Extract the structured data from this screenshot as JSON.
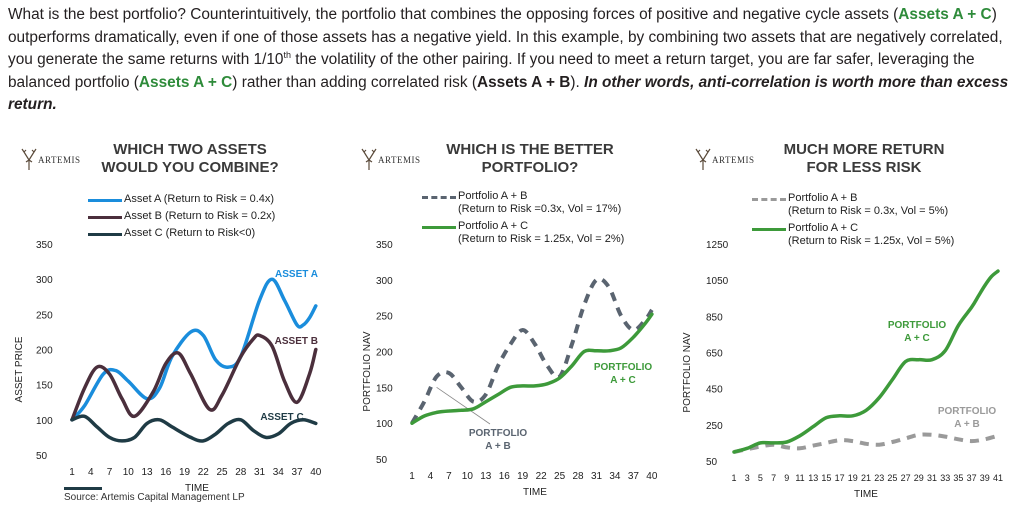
{
  "intro": {
    "p1": "What is the best portfolio? Counterintuitively, the portfolio that combines the opposing forces of positive and negative cycle assets (",
    "p1_bold": "Assets A + C",
    "p2": ") outperforms dramatically, even if one of those assets has a negative yield. In this example, by combining two assets that are negatively correlated, you generate the same returns with 1/10",
    "p2_sup": "th",
    "p3": " the volatility of the other pairing. If you need to meet a return target, you are far safer, leveraging the balanced portfolio (",
    "p3_bold": "Assets A + C",
    "p4": ") rather than adding correlated risk (",
    "p4_bold": "Assets A + B",
    "p5": "). ",
    "p5_italic": "In other words, anti-correlation is worth more than excess return."
  },
  "logo_text": "ARTEMIS",
  "source": "Source: Artemis Capital Management LP",
  "colors": {
    "asset_a": "#1a8ddc",
    "asset_b": "#4b2f3c",
    "asset_c": "#1f3b45",
    "portfolio_ab": "#5a6470",
    "portfolio_ac": "#3d9a3a",
    "title": "#3a3a3a"
  },
  "chart_data": [
    {
      "type": "line",
      "title": "WHICH TWO ASSETS WOULD YOU COMBINE?",
      "title_lines": [
        "WHICH TWO ASSETS",
        "WOULD YOU COMBINE?"
      ],
      "xlabel": "TIME",
      "ylabel": "ASSET PRICE",
      "ylim": [
        50,
        350
      ],
      "yticks": [
        50,
        100,
        150,
        200,
        250,
        300,
        350
      ],
      "xticks": [
        1,
        4,
        7,
        10,
        13,
        16,
        19,
        22,
        25,
        28,
        31,
        34,
        37,
        40
      ],
      "legend": [
        {
          "label": "Asset A (Return to Risk = 0.4x)",
          "style": "solid",
          "color": "#1a8ddc"
        },
        {
          "label": "Asset B (Return to Risk = 0.2x)",
          "style": "solid",
          "color": "#4b2f3c"
        },
        {
          "label": "Asset C (Return to Risk<0)",
          "style": "solid",
          "color": "#1f3b45"
        }
      ],
      "series": [
        {
          "name": "Asset A",
          "label": "ASSET A",
          "color": "#1a8ddc",
          "dashed": false,
          "x": [
            1,
            3,
            6,
            8,
            10,
            13,
            15,
            17,
            20,
            22,
            24,
            26,
            28,
            31,
            33,
            35,
            37,
            38,
            39,
            40
          ],
          "y": [
            100,
            120,
            165,
            170,
            155,
            130,
            145,
            190,
            225,
            220,
            185,
            175,
            190,
            270,
            300,
            270,
            235,
            235,
            245,
            262
          ]
        },
        {
          "name": "Asset B",
          "label": "ASSET B",
          "color": "#4b2f3c",
          "dashed": false,
          "x": [
            1,
            3,
            5,
            7,
            9,
            11,
            14,
            16,
            18,
            20,
            23,
            25,
            28,
            30,
            31,
            33,
            35,
            37,
            39,
            40
          ],
          "y": [
            100,
            145,
            175,
            165,
            130,
            105,
            140,
            180,
            195,
            165,
            115,
            135,
            190,
            215,
            220,
            205,
            155,
            125,
            165,
            200
          ]
        },
        {
          "name": "Asset C",
          "label": "ASSET C",
          "color": "#1f3b45",
          "dashed": false,
          "x": [
            1,
            3,
            5,
            7,
            9,
            11,
            13,
            15,
            17,
            20,
            22,
            24,
            26,
            28,
            30,
            32,
            34,
            36,
            38,
            40
          ],
          "y": [
            100,
            105,
            90,
            75,
            70,
            75,
            95,
            100,
            90,
            75,
            70,
            80,
            95,
            100,
            85,
            75,
            80,
            95,
            100,
            95
          ]
        }
      ]
    },
    {
      "type": "line",
      "title": "WHICH IS THE BETTER PORTFOLIO?",
      "title_lines": [
        "WHICH IS THE BETTER",
        "PORTFOLIO?"
      ],
      "xlabel": "TIME",
      "ylabel": "PORTFOLIO NAV",
      "ylim": [
        50,
        350
      ],
      "yticks": [
        50,
        100,
        150,
        200,
        250,
        300,
        350
      ],
      "xticks": [
        1,
        4,
        7,
        10,
        13,
        16,
        19,
        22,
        25,
        28,
        31,
        34,
        37,
        40
      ],
      "legend": [
        {
          "label": "Portfolio A + B",
          "sub": "(Return to Risk =0.3x, Vol = 17%)",
          "style": "dash",
          "color": "#5a6470"
        },
        {
          "label": "Portfolio A + C",
          "sub": "(Return to Risk = 1.25x, Vol = 2%)",
          "style": "solid",
          "color": "#3d9a3a"
        }
      ],
      "series": [
        {
          "name": "Portfolio A + B",
          "label_lines": [
            "PORTFOLIO",
            "A + B"
          ],
          "color": "#5a6470",
          "dashed": true,
          "x": [
            1,
            3,
            5,
            7,
            9,
            11,
            13,
            15,
            17,
            19,
            21,
            23,
            25,
            27,
            29,
            31,
            33,
            35,
            37,
            39,
            40
          ],
          "y": [
            100,
            130,
            165,
            170,
            150,
            130,
            140,
            180,
            210,
            230,
            210,
            180,
            165,
            210,
            265,
            300,
            290,
            250,
            230,
            245,
            258
          ]
        },
        {
          "name": "Portfolio A + C",
          "label_lines": [
            "PORTFOLIO",
            "A + C"
          ],
          "color": "#3d9a3a",
          "dashed": false,
          "x": [
            1,
            3,
            5,
            7,
            9,
            11,
            13,
            15,
            17,
            19,
            21,
            23,
            25,
            27,
            29,
            31,
            33,
            35,
            37,
            39,
            40
          ],
          "y": [
            100,
            110,
            115,
            117,
            118,
            120,
            130,
            140,
            150,
            152,
            152,
            155,
            163,
            180,
            200,
            201,
            201,
            205,
            220,
            240,
            252
          ]
        }
      ]
    },
    {
      "type": "line",
      "title": "MUCH MORE RETURN FOR LESS RISK",
      "title_lines": [
        "MUCH MORE RETURN",
        "FOR LESS RISK"
      ],
      "xlabel": "TIME",
      "ylabel": "PORTFOLIO NAV",
      "ylim": [
        50,
        1250
      ],
      "yticks": [
        50,
        250,
        450,
        650,
        850,
        1050,
        1250
      ],
      "xticks": [
        1,
        3,
        5,
        7,
        9,
        11,
        13,
        15,
        17,
        19,
        21,
        23,
        25,
        27,
        29,
        31,
        33,
        35,
        37,
        39,
        41
      ],
      "legend": [
        {
          "label": "Portfolio A + B",
          "sub": "(Return to Risk = 0.3x, Vol = 5%)",
          "style": "dash",
          "color": "#9a9a9a"
        },
        {
          "label": "Portfolio A + C",
          "sub": "(Return to Risk = 1.25x, Vol = 5%)",
          "style": "solid",
          "color": "#3d9a3a"
        }
      ],
      "series": [
        {
          "name": "Portfolio A + B",
          "label_lines": [
            "PORTFOLIO",
            "A + B"
          ],
          "color": "#9a9a9a",
          "dashed": true,
          "x": [
            1,
            3,
            5,
            7,
            9,
            11,
            13,
            15,
            17,
            19,
            21,
            23,
            25,
            27,
            29,
            31,
            33,
            35,
            37,
            39,
            41
          ],
          "y": [
            100,
            115,
            130,
            140,
            125,
            120,
            135,
            150,
            165,
            160,
            145,
            140,
            155,
            175,
            195,
            195,
            185,
            170,
            160,
            170,
            190
          ]
        },
        {
          "name": "Portfolio A + C",
          "label_lines": [
            "PORTFOLIO",
            "A + C"
          ],
          "color": "#3d9a3a",
          "dashed": false,
          "x": [
            1,
            3,
            5,
            7,
            9,
            11,
            13,
            15,
            17,
            19,
            21,
            23,
            25,
            27,
            29,
            31,
            33,
            35,
            37,
            38,
            39,
            40,
            41
          ],
          "y": [
            100,
            120,
            150,
            150,
            155,
            190,
            240,
            290,
            300,
            300,
            330,
            400,
            500,
            600,
            610,
            610,
            660,
            800,
            900,
            960,
            1020,
            1070,
            1100
          ]
        }
      ]
    }
  ]
}
